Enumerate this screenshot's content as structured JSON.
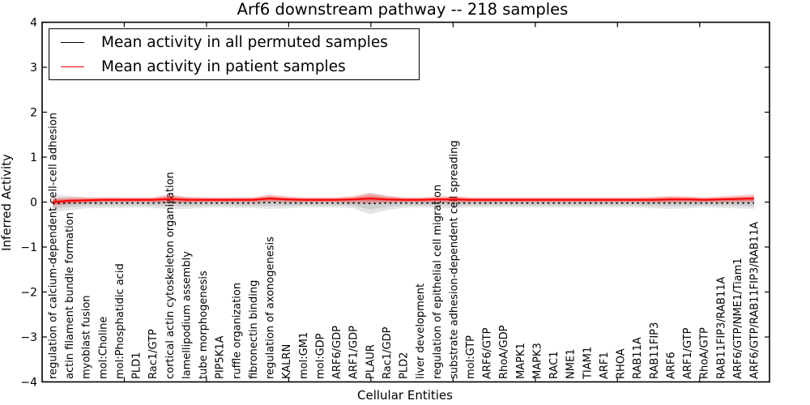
{
  "title": "Arf6 downstream pathway -- 218 samples",
  "legend": {
    "items": [
      {
        "label": "Mean activity in all permuted samples",
        "color": "#000000"
      },
      {
        "label": "Mean activity in patient samples",
        "color": "#ff0000"
      }
    ]
  },
  "chart_data": {
    "type": "line",
    "title": "Arf6 downstream pathway -- 218 samples",
    "xlabel": "Cellular Entities",
    "ylabel": "Inferred Activity",
    "ylim": [
      -4,
      4
    ],
    "yticks": [
      4,
      3,
      2,
      1,
      0,
      -1,
      -2,
      -3,
      -4
    ],
    "ytick_labels": [
      "4",
      "3",
      "2",
      "1",
      "0",
      "−1",
      "−2",
      "−3",
      "−4"
    ],
    "grid": false,
    "legend_position": "upper left",
    "n_samples": "218",
    "categories": [
      "regulation of calcium-dependent cell-cell adhesion",
      "actin filament bundle formation",
      "myoblast fusion",
      "mol:Choline",
      "mol:Phosphatidic acid",
      "PLD1",
      "Rac1/GTP",
      "cortical actin cytoskeleton organization",
      "lamellipodium assembly",
      "tube morphogenesis",
      "PIP5K1A",
      "ruffle organization",
      "fibronectin binding",
      "regulation of axonogenesis",
      "KALRN",
      "mol:GM1",
      "mol:GDP",
      "ARF6/GDP",
      "ARF1/GDP",
      "PLAUR",
      "Rac1/GDP",
      "PLD2",
      "liver development",
      "regulation of epithelial cell migration",
      "substrate adhesion-dependent cell spreading",
      "mol:GTP",
      "ARF6/GTP",
      "RhoA/GDP",
      "MAPK1",
      "MAPK3",
      "RAC1",
      "NME1",
      "TIAM1",
      "ARF1",
      "RHOA",
      "RAB11A",
      "RAB11FIP3",
      "ARF6",
      "ARF1/GTP",
      "RhoA/GTP",
      "RAB11FIP3/RAB11A",
      "ARF6/GTP/NME1/Tiam1",
      "ARF6/GTP/RAB11FIP3/RAB11A"
    ],
    "series": [
      {
        "name": "Mean activity in all permuted samples",
        "color": "#000000",
        "line_style": "dashed",
        "band_color": "rgba(0,0,0,0.10)",
        "values": [
          -0.03,
          -0.02,
          -0.02,
          -0.02,
          -0.02,
          -0.02,
          -0.02,
          -0.01,
          -0.02,
          -0.02,
          -0.02,
          -0.02,
          -0.02,
          -0.01,
          -0.02,
          -0.02,
          -0.02,
          -0.02,
          -0.02,
          -0.03,
          -0.02,
          -0.02,
          -0.02,
          -0.02,
          -0.02,
          -0.02,
          -0.02,
          -0.02,
          -0.02,
          -0.02,
          -0.02,
          -0.02,
          -0.02,
          -0.02,
          -0.02,
          -0.02,
          -0.02,
          -0.02,
          -0.02,
          -0.02,
          -0.02,
          -0.02,
          -0.02
        ],
        "band_halfwidth": [
          0.2,
          0.16,
          0.12,
          0.11,
          0.11,
          0.1,
          0.11,
          0.15,
          0.13,
          0.11,
          0.1,
          0.11,
          0.11,
          0.14,
          0.12,
          0.1,
          0.1,
          0.1,
          0.12,
          0.24,
          0.16,
          0.11,
          0.1,
          0.11,
          0.12,
          0.1,
          0.1,
          0.1,
          0.1,
          0.1,
          0.1,
          0.1,
          0.1,
          0.1,
          0.1,
          0.1,
          0.12,
          0.13,
          0.12,
          0.1,
          0.11,
          0.12,
          0.13
        ]
      },
      {
        "name": "Mean activity in patient samples",
        "color": "#ff0000",
        "line_style": "solid",
        "band_color": "rgba(255,0,0,0.20)",
        "values": [
          0.0,
          0.03,
          0.04,
          0.05,
          0.05,
          0.05,
          0.05,
          0.07,
          0.05,
          0.05,
          0.05,
          0.05,
          0.05,
          0.08,
          0.06,
          0.05,
          0.05,
          0.05,
          0.06,
          0.08,
          0.06,
          0.05,
          0.05,
          0.06,
          0.06,
          0.05,
          0.05,
          0.05,
          0.05,
          0.05,
          0.05,
          0.05,
          0.05,
          0.05,
          0.05,
          0.05,
          0.05,
          0.06,
          0.06,
          0.05,
          0.06,
          0.07,
          0.08
        ],
        "band_halfwidth": [
          0.09,
          0.08,
          0.07,
          0.06,
          0.06,
          0.06,
          0.06,
          0.1,
          0.07,
          0.06,
          0.06,
          0.06,
          0.06,
          0.09,
          0.07,
          0.06,
          0.06,
          0.06,
          0.08,
          0.12,
          0.08,
          0.06,
          0.06,
          0.07,
          0.08,
          0.06,
          0.06,
          0.06,
          0.06,
          0.06,
          0.06,
          0.06,
          0.06,
          0.06,
          0.06,
          0.06,
          0.07,
          0.08,
          0.07,
          0.06,
          0.07,
          0.08,
          0.09
        ]
      }
    ]
  }
}
